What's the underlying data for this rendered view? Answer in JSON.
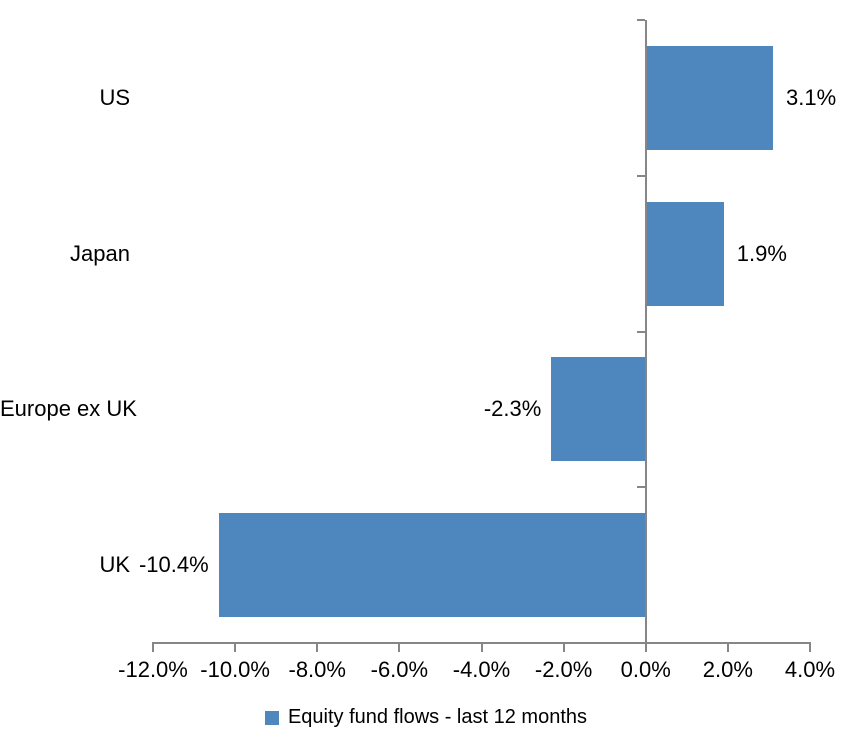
{
  "chart_data": {
    "type": "bar",
    "orientation": "horizontal",
    "categories": [
      "US",
      "Japan",
      "Europe ex UK",
      "UK"
    ],
    "values": [
      3.1,
      1.9,
      -2.3,
      -10.4
    ],
    "value_labels": [
      "3.1%",
      "1.9%",
      "-2.3%",
      "-10.4%"
    ],
    "series_name": "Equity fund flows - last 12 months",
    "xlim": [
      -12,
      4
    ],
    "x_tick_step": 2,
    "x_tick_labels": [
      "-12.0%",
      "-10.0%",
      "-8.0%",
      "-6.0%",
      "-4.0%",
      "-2.0%",
      "0.0%",
      "2.0%",
      "4.0%"
    ],
    "legend_position": "bottom",
    "grid": false,
    "colors": {
      "bar": "#4E87BE",
      "axis": "#868686",
      "text": "#000000",
      "background": "#FFFFFF"
    }
  }
}
